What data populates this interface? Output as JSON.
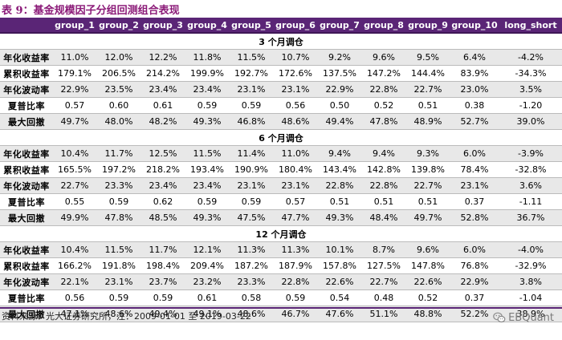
{
  "title": "表 9：基金规模因子分组回测组合表现",
  "headers": [
    "",
    "group_1",
    "group_2",
    "group_3",
    "group_4",
    "group_5",
    "group_6",
    "group_7",
    "group_8",
    "group_9",
    "group_10",
    "long_short"
  ],
  "sections": [
    {
      "label": "3 个月调仓",
      "rows": [
        {
          "label": "年化收益率",
          "values": [
            "11.0%",
            "12.0%",
            "12.2%",
            "11.8%",
            "11.5%",
            "10.7%",
            "9.2%",
            "9.6%",
            "9.5%",
            "6.4%",
            "-4.2%"
          ]
        },
        {
          "label": "累积收益率",
          "values": [
            "179.1%",
            "206.5%",
            "214.2%",
            "199.9%",
            "192.7%",
            "172.6%",
            "137.5%",
            "147.2%",
            "144.4%",
            "83.9%",
            "-34.3%"
          ]
        },
        {
          "label": "年化波动率",
          "values": [
            "22.9%",
            "23.5%",
            "23.4%",
            "23.4%",
            "23.1%",
            "23.1%",
            "22.9%",
            "22.8%",
            "22.7%",
            "23.0%",
            "3.5%"
          ]
        },
        {
          "label": "夏普比率",
          "values": [
            "0.57",
            "0.60",
            "0.61",
            "0.59",
            "0.59",
            "0.56",
            "0.50",
            "0.52",
            "0.51",
            "0.38",
            "-1.20"
          ]
        },
        {
          "label": "最大回撤",
          "values": [
            "49.7%",
            "48.0%",
            "48.2%",
            "49.3%",
            "46.8%",
            "48.6%",
            "49.4%",
            "47.8%",
            "48.9%",
            "52.7%",
            "39.0%"
          ]
        }
      ]
    },
    {
      "label": "6 个月调仓",
      "rows": [
        {
          "label": "年化收益率",
          "values": [
            "10.4%",
            "11.7%",
            "12.5%",
            "11.5%",
            "11.4%",
            "11.0%",
            "9.4%",
            "9.4%",
            "9.3%",
            "6.0%",
            "-3.9%"
          ]
        },
        {
          "label": "累积收益率",
          "values": [
            "165.5%",
            "197.2%",
            "218.2%",
            "193.4%",
            "190.9%",
            "180.4%",
            "143.4%",
            "142.8%",
            "139.8%",
            "78.4%",
            "-32.8%"
          ]
        },
        {
          "label": "年化波动率",
          "values": [
            "22.7%",
            "23.3%",
            "23.4%",
            "23.4%",
            "23.1%",
            "23.1%",
            "22.8%",
            "22.8%",
            "22.7%",
            "23.1%",
            "3.6%"
          ]
        },
        {
          "label": "夏普比率",
          "values": [
            "0.55",
            "0.59",
            "0.62",
            "0.59",
            "0.59",
            "0.57",
            "0.51",
            "0.51",
            "0.51",
            "0.37",
            "-1.11"
          ]
        },
        {
          "label": "最大回撤",
          "values": [
            "49.9%",
            "47.8%",
            "48.5%",
            "49.3%",
            "47.5%",
            "47.7%",
            "49.3%",
            "48.4%",
            "49.7%",
            "52.8%",
            "36.7%"
          ]
        }
      ]
    },
    {
      "label": "12 个月调仓",
      "rows": [
        {
          "label": "年化收益率",
          "values": [
            "10.4%",
            "11.5%",
            "11.7%",
            "12.1%",
            "11.3%",
            "11.3%",
            "10.1%",
            "8.7%",
            "9.6%",
            "6.0%",
            "-4.0%"
          ]
        },
        {
          "label": "累积收益率",
          "values": [
            "166.2%",
            "191.8%",
            "198.4%",
            "209.4%",
            "187.2%",
            "187.9%",
            "157.8%",
            "127.5%",
            "147.8%",
            "76.8%",
            "-32.9%"
          ]
        },
        {
          "label": "年化波动率",
          "values": [
            "22.1%",
            "23.1%",
            "23.7%",
            "23.2%",
            "23.3%",
            "22.8%",
            "22.6%",
            "22.7%",
            "22.6%",
            "22.9%",
            "3.8%"
          ]
        },
        {
          "label": "夏普比率",
          "values": [
            "0.56",
            "0.59",
            "0.59",
            "0.61",
            "0.58",
            "0.59",
            "0.54",
            "0.48",
            "0.52",
            "0.37",
            "-1.04"
          ]
        },
        {
          "label": "最大回撤",
          "values": [
            "47.1%",
            "48.6%",
            "49.4%",
            "49.1%",
            "48.6%",
            "46.7%",
            "47.6%",
            "51.1%",
            "48.8%",
            "52.2%",
            "38.9%"
          ]
        }
      ]
    }
  ],
  "source": "资料来源：光大证券研究所，注：2009-01-01 至 2019-03-22",
  "watermark": "EBQuant",
  "watermark_icon": "wechat-icon",
  "colors": {
    "header_bg": "#5a2576",
    "title": "#8b1a78",
    "alt_row": "#e8e8e8"
  }
}
